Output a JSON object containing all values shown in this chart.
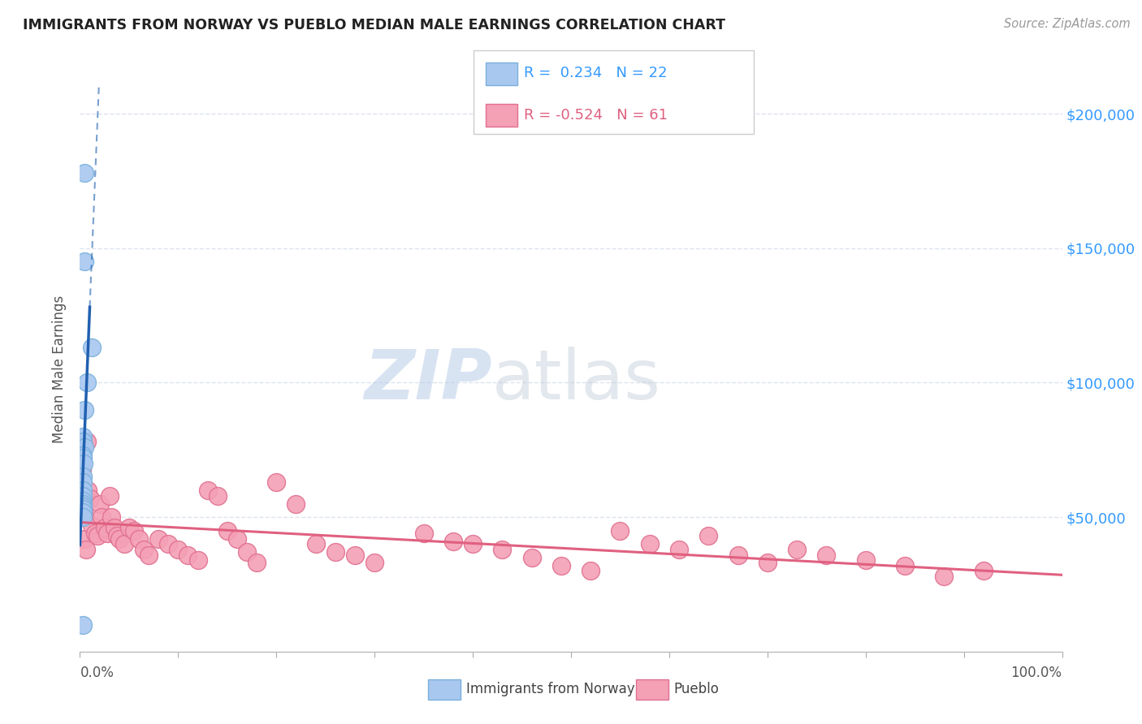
{
  "title": "IMMIGRANTS FROM NORWAY VS PUEBLO MEDIAN MALE EARNINGS CORRELATION CHART",
  "source": "Source: ZipAtlas.com",
  "ylabel": "Median Male Earnings",
  "yticks": [
    0,
    50000,
    100000,
    150000,
    200000
  ],
  "ytick_labels": [
    "",
    "$50,000",
    "$100,000",
    "$150,000",
    "$200,000"
  ],
  "xlim": [
    0.0,
    1.0
  ],
  "ylim": [
    0,
    210000
  ],
  "legend1_r": "0.234",
  "legend1_n": "22",
  "legend2_r": "-0.524",
  "legend2_n": "61",
  "norway_color": "#a8c8f0",
  "norway_edge": "#7ab0dc",
  "pueblo_color": "#f4a0b5",
  "pueblo_edge": "#e07090",
  "norway_line_color": "#2060b0",
  "pueblo_line_color": "#e06080",
  "norway_scatter_x": [
    0.005,
    0.005,
    0.012,
    0.007,
    0.005,
    0.003,
    0.003,
    0.005,
    0.003,
    0.003,
    0.004,
    0.003,
    0.003,
    0.003,
    0.003,
    0.003,
    0.003,
    0.003,
    0.003,
    0.003,
    0.003,
    0.003
  ],
  "norway_scatter_y": [
    178000,
    145000,
    113000,
    100000,
    90000,
    80000,
    78000,
    76000,
    73000,
    72000,
    70000,
    65000,
    63000,
    60000,
    58000,
    56000,
    55000,
    54000,
    53000,
    52000,
    50000,
    10000
  ],
  "pueblo_scatter_x": [
    0.002,
    0.004,
    0.005,
    0.006,
    0.007,
    0.008,
    0.01,
    0.012,
    0.015,
    0.018,
    0.02,
    0.022,
    0.025,
    0.028,
    0.03,
    0.032,
    0.035,
    0.038,
    0.04,
    0.045,
    0.05,
    0.055,
    0.06,
    0.065,
    0.07,
    0.08,
    0.09,
    0.1,
    0.11,
    0.12,
    0.13,
    0.14,
    0.15,
    0.16,
    0.17,
    0.18,
    0.2,
    0.22,
    0.24,
    0.26,
    0.28,
    0.3,
    0.35,
    0.38,
    0.4,
    0.43,
    0.46,
    0.49,
    0.52,
    0.55,
    0.58,
    0.61,
    0.64,
    0.67,
    0.7,
    0.73,
    0.76,
    0.8,
    0.84,
    0.88,
    0.92
  ],
  "pueblo_scatter_y": [
    68000,
    52000,
    42000,
    38000,
    78000,
    60000,
    57000,
    47000,
    44000,
    43000,
    55000,
    50000,
    46000,
    44000,
    58000,
    50000,
    46000,
    43000,
    42000,
    40000,
    46000,
    45000,
    42000,
    38000,
    36000,
    42000,
    40000,
    38000,
    36000,
    34000,
    60000,
    58000,
    45000,
    42000,
    37000,
    33000,
    63000,
    55000,
    40000,
    37000,
    36000,
    33000,
    44000,
    41000,
    40000,
    38000,
    35000,
    32000,
    30000,
    45000,
    40000,
    38000,
    43000,
    36000,
    33000,
    38000,
    36000,
    34000,
    32000,
    28000,
    30000
  ],
  "watermark_zip": "ZIP",
  "watermark_atlas": "atlas",
  "background_color": "#ffffff",
  "grid_color": "#dde4ee",
  "title_color": "#222222",
  "axis_label_color": "#555555",
  "right_tick_color": "#3399ff",
  "source_color": "#999999"
}
